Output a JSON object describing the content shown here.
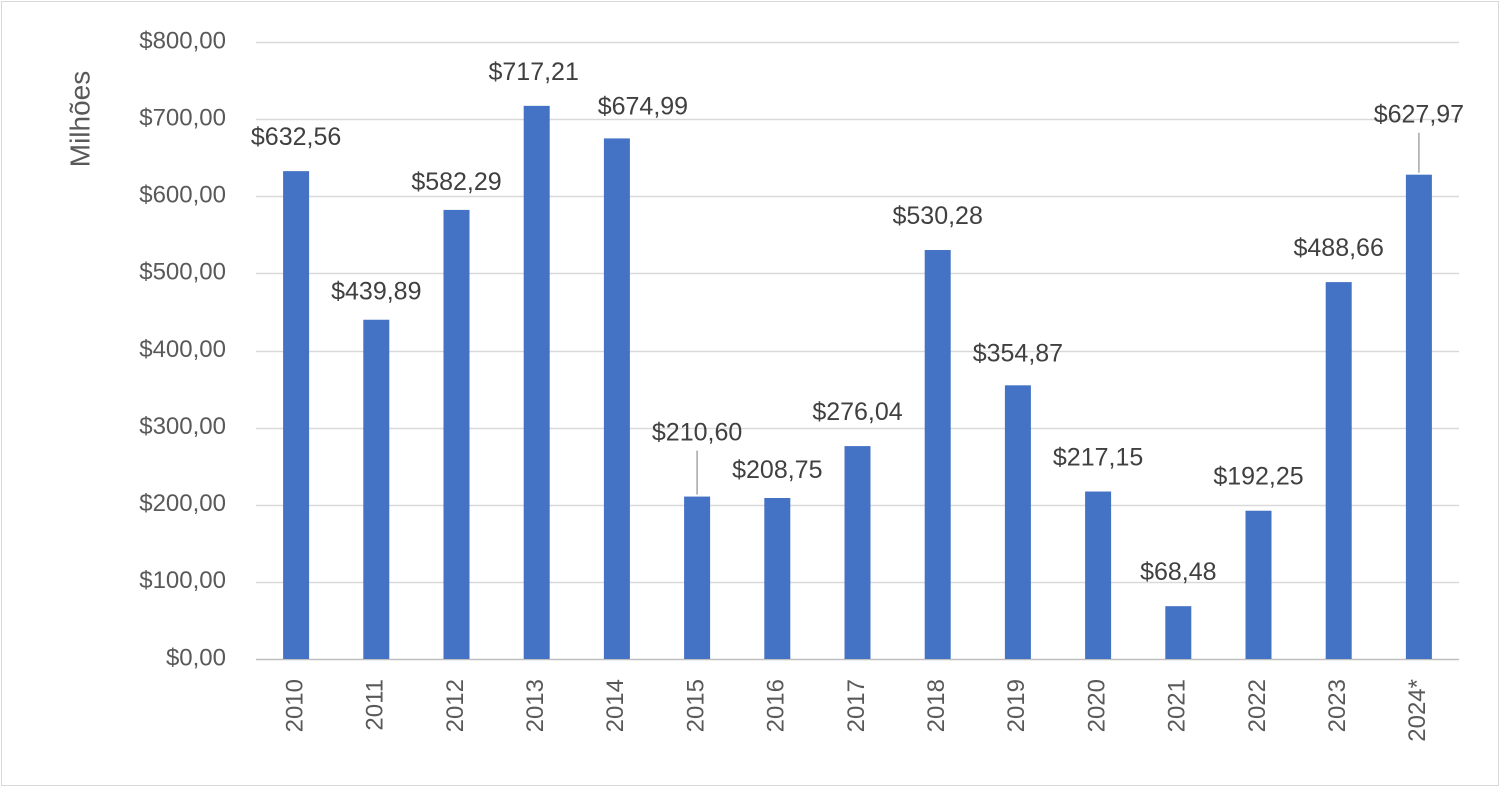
{
  "chart_data": {
    "type": "bar",
    "title": "",
    "xlabel": "",
    "ylabel": "Milhões",
    "ylim": [
      0,
      800
    ],
    "y_ticks": [
      0,
      100,
      200,
      300,
      400,
      500,
      600,
      700,
      800
    ],
    "y_tick_labels": [
      "$0,00",
      "$100,00",
      "$200,00",
      "$300,00",
      "$400,00",
      "$500,00",
      "$600,00",
      "$700,00",
      "$800,00"
    ],
    "grid": true,
    "categories": [
      "2010",
      "2011",
      "2012",
      "2013",
      "2014",
      "2015",
      "2016",
      "2017",
      "2018",
      "2019",
      "2020",
      "2021",
      "2022",
      "2023",
      "2024*"
    ],
    "values": [
      632.56,
      439.89,
      582.29,
      717.21,
      674.99,
      210.6,
      208.75,
      276.04,
      530.28,
      354.87,
      217.15,
      68.48,
      192.25,
      488.66,
      627.97
    ],
    "data_labels": [
      "$632,56",
      "$439,89",
      "$582,29",
      "$717,21",
      "$674,99",
      "$210,60",
      "$208,75",
      "$276,04",
      "$530,28",
      "$354,87",
      "$217,15",
      "$68,48",
      "$192,25",
      "$488,66",
      "$627,97"
    ],
    "colors": {
      "bar": "#4472c4",
      "grid": "#d9d9d9",
      "axis": "#bfbfbf",
      "leader": "#a6a6a6"
    }
  }
}
